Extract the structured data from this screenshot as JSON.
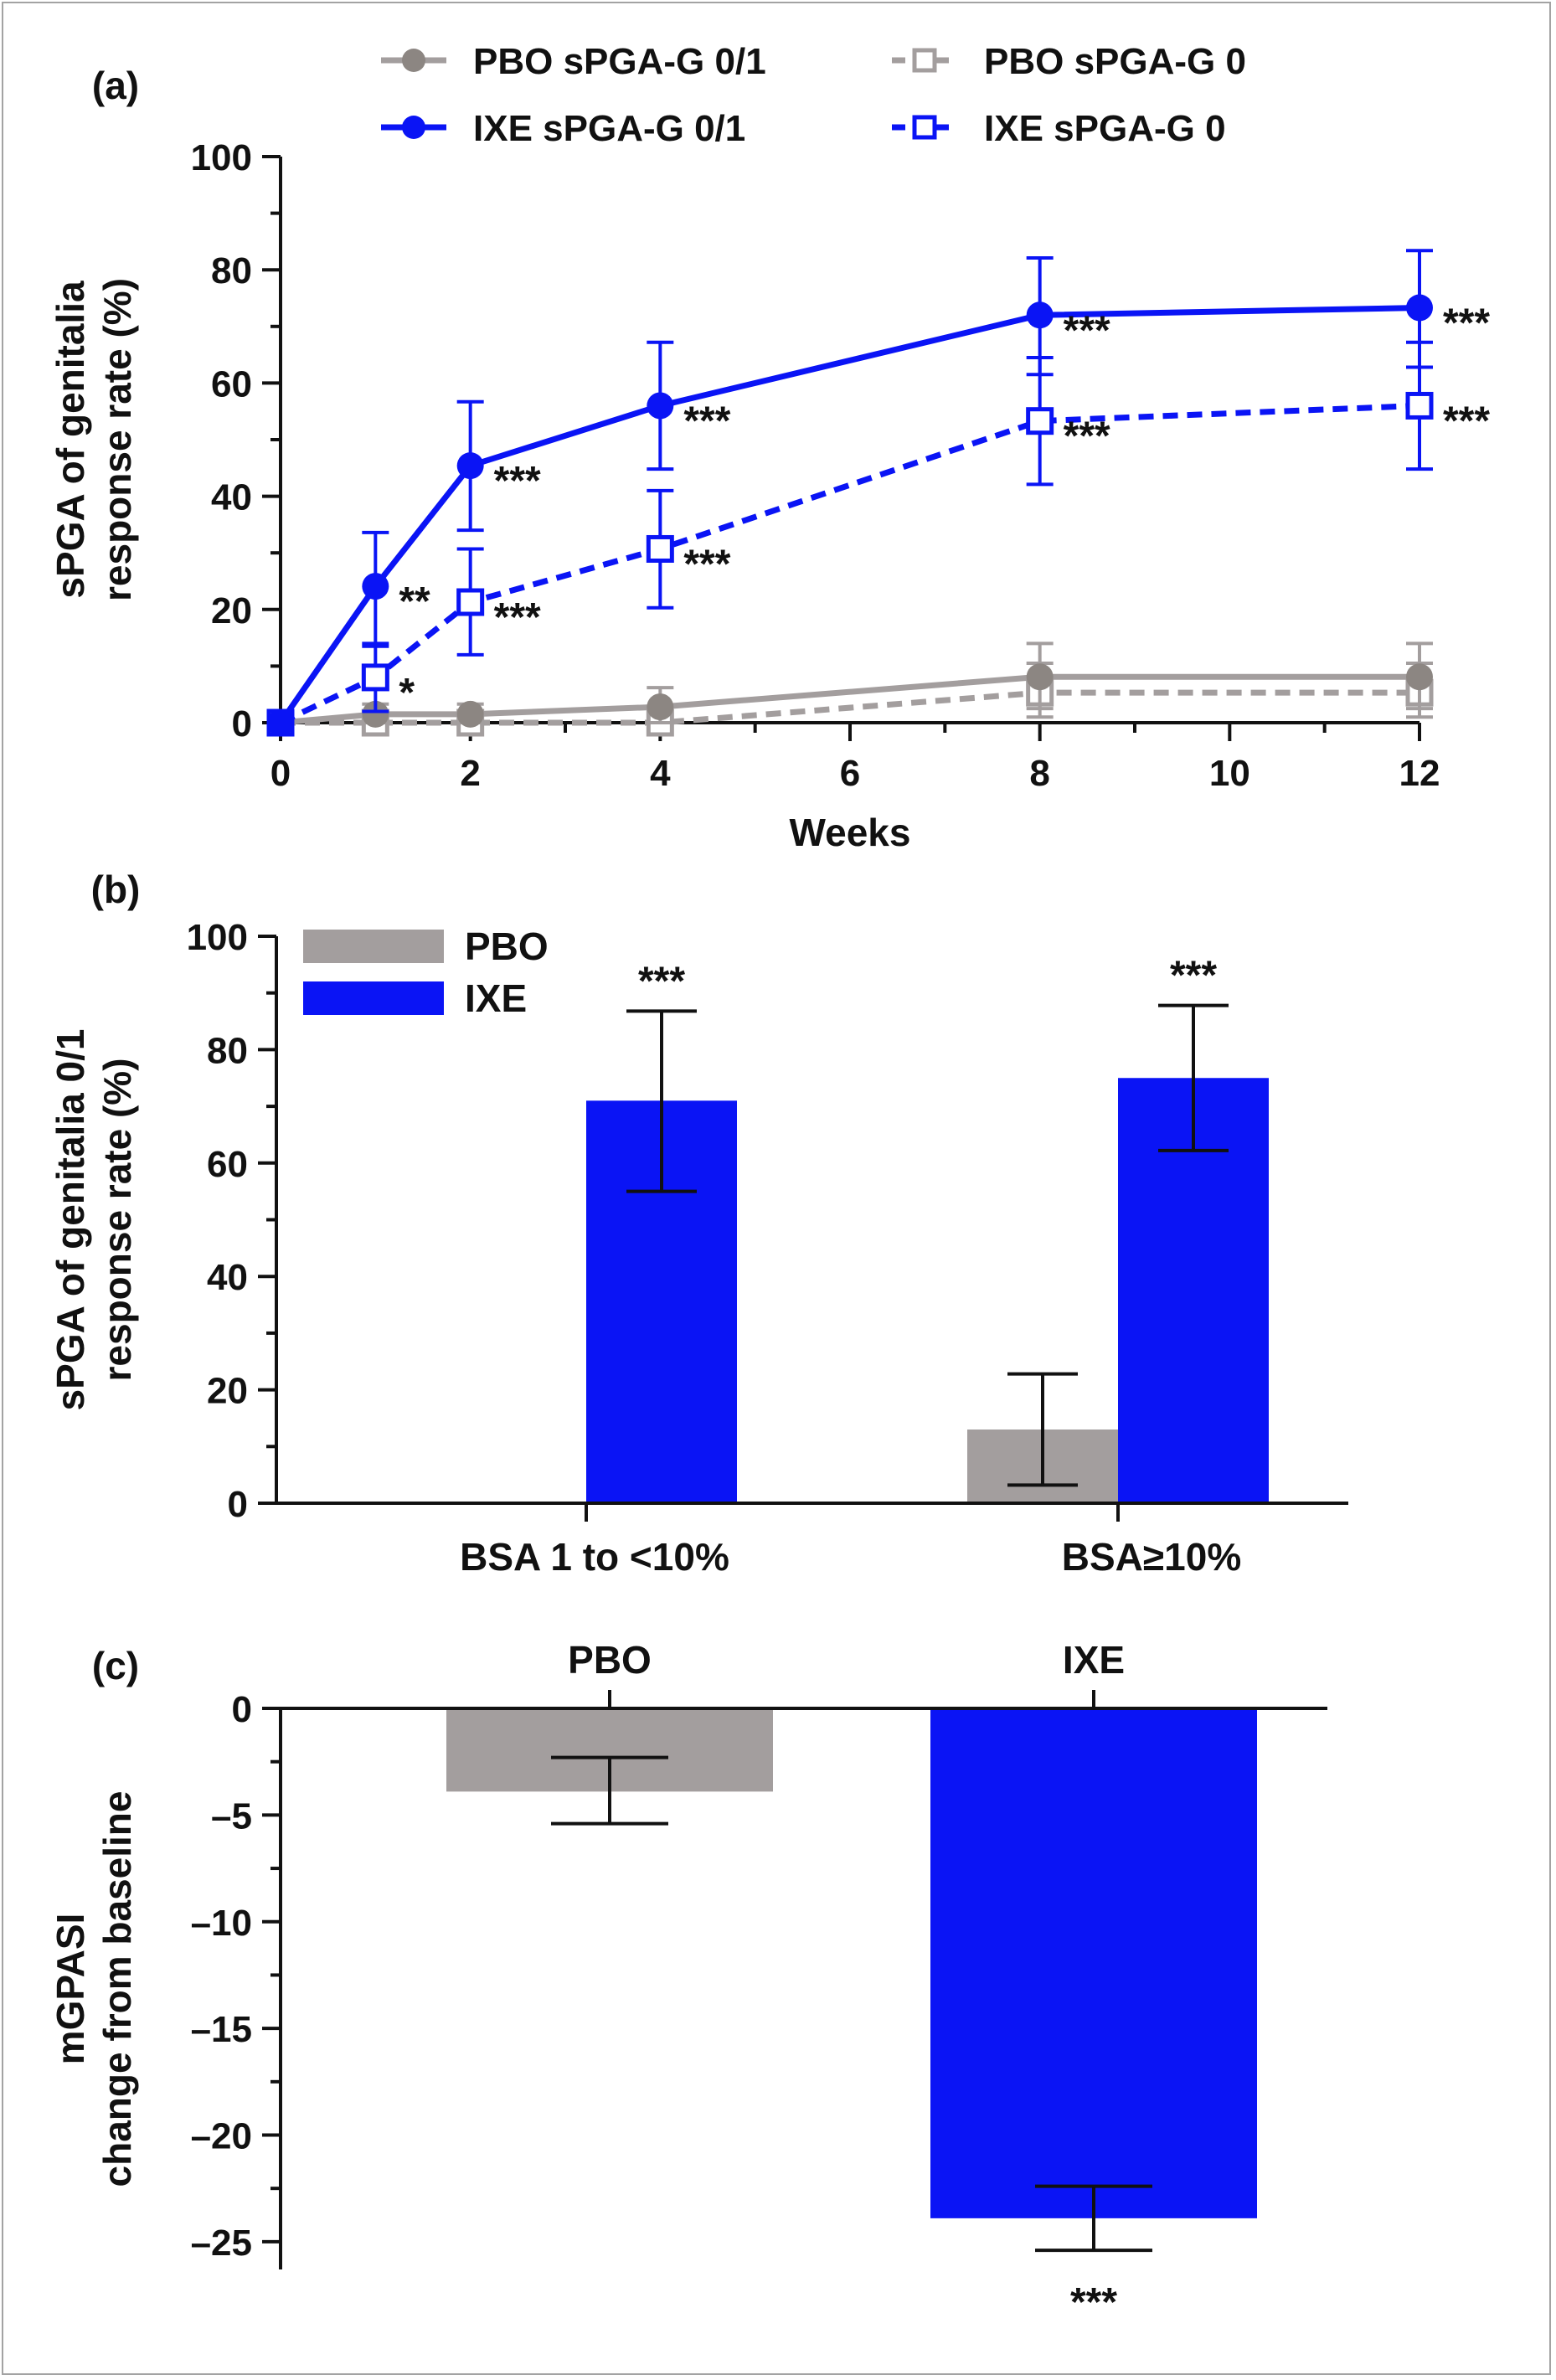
{
  "colors": {
    "ixe": "#0a14f5",
    "pbo": "#a39e9e",
    "pbo_marker": "#8c8682",
    "axis": "#111111",
    "frame": "#a3a3a3"
  },
  "chart_data": [
    {
      "panel_label": "(a)",
      "type": "line",
      "xlabel": "Weeks",
      "ylabel": [
        "sPGA of genitalia",
        "response rate (%)"
      ],
      "xlim": [
        0,
        12
      ],
      "ylim": [
        0,
        100
      ],
      "xticks": [
        0,
        2,
        4,
        6,
        8,
        10,
        12
      ],
      "yticks": [
        0,
        20,
        40,
        60,
        80,
        100
      ],
      "grid": false,
      "legend_position": "top",
      "series": [
        {
          "name": "PBO sPGA-G 0/1",
          "color": "#a39e9e",
          "marker": "filled-circle",
          "dashed": false,
          "x": [
            0,
            1,
            2,
            4,
            8,
            12
          ],
          "y": [
            0,
            1.5,
            1.5,
            2.8,
            8.1,
            8.1
          ],
          "err_low": [
            0,
            0,
            0,
            0,
            2.5,
            2.5
          ],
          "err_high": [
            0,
            3.3,
            3.3,
            6.2,
            14.0,
            14.0
          ],
          "sig": [
            "",
            "",
            "",
            "",
            "",
            ""
          ]
        },
        {
          "name": "IXE sPGA-G 0/1",
          "color": "#0a14f5",
          "marker": "filled-circle",
          "dashed": false,
          "x": [
            0,
            1,
            2,
            4,
            8,
            12
          ],
          "y": [
            0,
            24.1,
            45.4,
            56.0,
            72.0,
            73.3
          ],
          "err_low": [
            0,
            14.0,
            34.0,
            44.8,
            61.5,
            62.8
          ],
          "err_high": [
            0,
            33.6,
            56.7,
            67.2,
            82.1,
            83.4
          ],
          "sig": [
            "",
            "**",
            "***",
            "***",
            "***",
            "***"
          ]
        },
        {
          "name": "PBO sPGA-G 0",
          "color": "#a39e9e",
          "marker": "open-square",
          "dashed": true,
          "x": [
            0,
            1,
            2,
            4,
            8,
            12
          ],
          "y": [
            0,
            0,
            0,
            0,
            5.3,
            5.3
          ],
          "err_low": [
            0,
            0,
            0,
            0,
            1.0,
            1.0
          ],
          "err_high": [
            0,
            0,
            0,
            0,
            10.5,
            10.5
          ],
          "sig": [
            "",
            "",
            "",
            "",
            "",
            ""
          ]
        },
        {
          "name": "IXE sPGA-G 0",
          "color": "#0a14f5",
          "marker": "open-square",
          "dashed": true,
          "x": [
            0,
            1,
            2,
            4,
            8,
            12
          ],
          "y": [
            0,
            8.0,
            21.3,
            30.7,
            53.3,
            56.0
          ],
          "err_low": [
            0,
            2.0,
            12.0,
            20.3,
            42.1,
            44.8
          ],
          "err_high": [
            0,
            13.5,
            30.7,
            41.0,
            64.5,
            67.2
          ],
          "sig": [
            "",
            "*",
            "***",
            "***",
            "***",
            "***"
          ]
        }
      ]
    },
    {
      "panel_label": "(b)",
      "type": "bar",
      "categories": [
        "BSA 1 to <10%",
        "BSA≥10%"
      ],
      "ylabel": [
        "sPGA of genitalia 0/1",
        "response rate (%)"
      ],
      "ylim": [
        0,
        100
      ],
      "yticks": [
        0,
        20,
        40,
        60,
        80,
        100
      ],
      "grid": false,
      "legend_position": "top-left",
      "series": [
        {
          "name": "PBO",
          "color": "#a39e9e",
          "values": [
            0,
            13.0
          ],
          "err_low": [
            0,
            3.2
          ],
          "err_high": [
            0,
            22.8
          ],
          "sig": [
            "",
            ""
          ]
        },
        {
          "name": "IXE",
          "color": "#0a14f5",
          "values": [
            71.0,
            75.0
          ],
          "err_low": [
            55.0,
            62.2
          ],
          "err_high": [
            86.8,
            87.8
          ],
          "sig": [
            "***",
            "***"
          ]
        }
      ]
    },
    {
      "panel_label": "(c)",
      "type": "bar",
      "categories": [
        "PBO",
        "IXE"
      ],
      "ylabel": [
        "mGPASI",
        "change from baseline"
      ],
      "ylim": [
        -26.3,
        0
      ],
      "yticks": [
        0,
        -5,
        -10,
        -15,
        -20,
        -25
      ],
      "ytick_labels": [
        "0",
        "–5",
        "–10",
        "–15",
        "–20",
        "–25"
      ],
      "grid": false,
      "colors": [
        "#a39e9e",
        "#0a14f5"
      ],
      "values": [
        -3.9,
        -23.9
      ],
      "err_low": [
        -5.4,
        -25.4
      ],
      "err_high": [
        -2.3,
        -22.4
      ],
      "sig": [
        "",
        "***"
      ]
    }
  ]
}
